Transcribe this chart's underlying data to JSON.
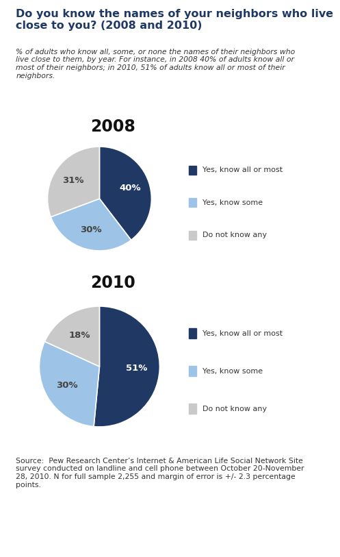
{
  "title": "Do you know the names of your neighbors who live\nclose to you? (2008 and 2010)",
  "subtitle": "% of adults who know all, some, or none the names of their neighbors who\nlive close to them, by year. For instance, in 2008 40% of adults know all or\nmost of their neighbors; in 2010, 51% of adults know all or most of their\nneighbors.",
  "source": "Source:  Pew Research Center’s Internet & American Life Social Network Site\nsurvey conducted on landline and cell phone between October 20-November\n28, 2010. N for full sample 2,255 and margin of error is +/- 2.3 percentage\npoints.",
  "year1": "2008",
  "year2": "2010",
  "data_2008": [
    40,
    30,
    31
  ],
  "data_2010": [
    51,
    30,
    18
  ],
  "labels": [
    "Yes, know all or most",
    "Yes, know some",
    "Do not know any"
  ],
  "colors": [
    "#1F3864",
    "#9DC3E6",
    "#C9C9C9"
  ],
  "pct_labels_2008": [
    "40%",
    "30%",
    "31%"
  ],
  "pct_labels_2010": [
    "51%",
    "30%",
    "18%"
  ],
  "label_colors_2008": [
    "white",
    "#444444",
    "#444444"
  ],
  "label_colors_2010": [
    "white",
    "#444444",
    "#444444"
  ],
  "background_color": "#FFFFFF",
  "title_color": "#1F3864",
  "text_color": "#333333",
  "source_color": "#333333"
}
